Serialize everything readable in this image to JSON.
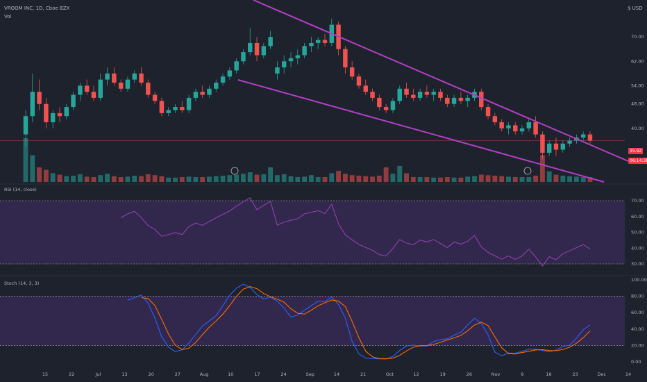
{
  "header": {
    "symbol_line": "VROOM INC, 1D, Cboe BZX",
    "vol_label": "Vol",
    "currency": "$ USD"
  },
  "price_badges": {
    "price": "35.92",
    "countdown": "06:14:38"
  },
  "colors": {
    "background": "#1e222d",
    "up": "#26a69a",
    "down": "#ef5350",
    "wedge": "#b33fc6",
    "rsi": "#8e44ad",
    "stoch_k": "#2962ff",
    "stoch_d": "#ff6d00",
    "band": "#3b2a5a"
  },
  "chart_data": [
    {
      "type": "candlestick",
      "title": "VROOM INC, 1D, Cboe BZX",
      "y_ticks": [
        70.0,
        62.0,
        54.0,
        48.0,
        40.0
      ],
      "last_price": 35.92,
      "series": [
        {
          "name": "price",
          "ohlc": [
            [
              38.0,
              46.0,
              34.0,
              44.0
            ],
            [
              44.0,
              58.0,
              42.0,
              52.0
            ],
            [
              52.0,
              56.0,
              46.0,
              48.0
            ],
            [
              48.0,
              50.0,
              40.0,
              42.0
            ],
            [
              42.0,
              46.0,
              40.0,
              45.0
            ],
            [
              45.0,
              47.0,
              42.0,
              44.0
            ],
            [
              44.0,
              48.0,
              43.0,
              47.0
            ],
            [
              47.0,
              52.0,
              46.0,
              51.0
            ],
            [
              51.0,
              55.0,
              49.0,
              54.0
            ],
            [
              54.0,
              56.0,
              51.0,
              52.0
            ],
            [
              52.0,
              54.0,
              49.0,
              50.0
            ],
            [
              50.0,
              58.0,
              49.0,
              56.0
            ],
            [
              56.0,
              60.0,
              54.0,
              58.0
            ],
            [
              58.0,
              60.0,
              54.0,
              55.0
            ],
            [
              55.0,
              56.0,
              52.0,
              53.0
            ],
            [
              53.0,
              57.0,
              52.0,
              56.0
            ],
            [
              56.0,
              59.0,
              55.0,
              58.0
            ],
            [
              58.0,
              60.0,
              54.0,
              55.0
            ],
            [
              55.0,
              56.0,
              50.0,
              51.0
            ],
            [
              51.0,
              52.0,
              48.0,
              49.0
            ],
            [
              49.0,
              50.0,
              44.0,
              45.0
            ],
            [
              45.0,
              47.0,
              44.0,
              46.0
            ],
            [
              46.0,
              48.0,
              45.0,
              47.0
            ],
            [
              47.0,
              49.0,
              45.0,
              46.0
            ],
            [
              46.0,
              51.0,
              45.0,
              50.0
            ],
            [
              50.0,
              53.0,
              49.0,
              52.0
            ],
            [
              52.0,
              54.0,
              50.0,
              51.0
            ],
            [
              51.0,
              54.0,
              50.0,
              53.0
            ],
            [
              53.0,
              56.0,
              52.0,
              55.0
            ],
            [
              55.0,
              58.0,
              54.0,
              57.0
            ],
            [
              57.0,
              60.0,
              56.0,
              59.0
            ],
            [
              59.0,
              63.0,
              58.0,
              62.0
            ],
            [
              62.0,
              66.0,
              61.0,
              65.0
            ],
            [
              65.0,
              73.0,
              64.0,
              68.0
            ],
            [
              68.0,
              70.0,
              62.0,
              64.0
            ],
            [
              64.0,
              68.0,
              63.0,
              67.0
            ],
            [
              67.0,
              72.0,
              66.0,
              70.0
            ],
            [
              58.0,
              62.0,
              56.0,
              60.0
            ],
            [
              60.0,
              64.0,
              58.0,
              62.0
            ],
            [
              62.0,
              65.0,
              60.0,
              63.0
            ],
            [
              63.0,
              66.0,
              61.0,
              64.0
            ],
            [
              64.0,
              68.0,
              63.0,
              67.0
            ],
            [
              67.0,
              70.0,
              65.0,
              68.0
            ],
            [
              68.0,
              70.0,
              66.0,
              69.0
            ],
            [
              69.0,
              71.0,
              67.0,
              68.0
            ],
            [
              68.0,
              76.0,
              67.0,
              74.0
            ],
            [
              74.0,
              75.0,
              64.0,
              66.0
            ],
            [
              66.0,
              67.0,
              58.0,
              60.0
            ],
            [
              60.0,
              62.0,
              56.0,
              57.0
            ],
            [
              57.0,
              58.0,
              53.0,
              54.0
            ],
            [
              54.0,
              56.0,
              51.0,
              52.0
            ],
            [
              52.0,
              53.0,
              49.0,
              50.0
            ],
            [
              50.0,
              51.0,
              46.0,
              47.0
            ],
            [
              47.0,
              48.0,
              45.0,
              46.0
            ],
            [
              46.0,
              50.0,
              45.0,
              49.0
            ],
            [
              49.0,
              54.0,
              48.0,
              53.0
            ],
            [
              53.0,
              55.0,
              50.0,
              51.0
            ],
            [
              51.0,
              53.0,
              49.0,
              50.0
            ],
            [
              50.0,
              53.0,
              49.0,
              52.0
            ],
            [
              52.0,
              54.0,
              50.0,
              51.0
            ],
            [
              51.0,
              53.0,
              49.0,
              52.0
            ],
            [
              52.0,
              53.0,
              49.0,
              50.0
            ],
            [
              50.0,
              51.0,
              47.0,
              48.0
            ],
            [
              48.0,
              51.0,
              47.0,
              50.0
            ],
            [
              50.0,
              52.0,
              48.0,
              49.0
            ],
            [
              49.0,
              51.0,
              47.0,
              50.0
            ],
            [
              50.0,
              53.0,
              49.0,
              52.0
            ],
            [
              52.0,
              53.0,
              46.0,
              47.0
            ],
            [
              47.0,
              48.0,
              43.0,
              44.0
            ],
            [
              44.0,
              45.0,
              41.0,
              42.0
            ],
            [
              42.0,
              43.0,
              39.0,
              40.0
            ],
            [
              40.0,
              42.0,
              38.0,
              41.0
            ],
            [
              41.0,
              42.0,
              38.0,
              39.0
            ],
            [
              39.0,
              41.0,
              38.0,
              40.0
            ],
            [
              40.0,
              43.0,
              39.0,
              42.0
            ],
            [
              42.0,
              44.0,
              37.0,
              38.0
            ],
            [
              38.0,
              39.0,
              30.0,
              32.0
            ],
            [
              32.0,
              36.0,
              31.0,
              35.0
            ],
            [
              35.0,
              37.0,
              31.0,
              33.0
            ],
            [
              33.0,
              36.0,
              32.0,
              35.0
            ],
            [
              35.0,
              37.0,
              34.0,
              36.0
            ],
            [
              36.0,
              38.0,
              35.0,
              37.0
            ],
            [
              37.0,
              39.0,
              36.0,
              38.0
            ],
            [
              38.0,
              39.0,
              35.0,
              36.0
            ]
          ]
        }
      ]
    },
    {
      "type": "bar",
      "title": "Vol",
      "series": [
        {
          "name": "volume",
          "values": [
            9.0,
            5.5,
            3.0,
            2.5,
            1.8,
            1.5,
            1.2,
            1.3,
            1.6,
            1.1,
            1.0,
            1.4,
            1.7,
            1.2,
            1.0,
            1.1,
            1.3,
            1.2,
            1.6,
            1.4,
            1.2,
            0.9,
            0.9,
            1.0,
            1.1,
            1.0,
            1.0,
            1.1,
            1.2,
            1.3,
            1.4,
            1.5,
            1.7,
            2.0,
            1.5,
            1.6,
            3.0,
            1.4,
            1.6,
            1.2,
            1.0,
            1.1,
            1.4,
            1.0,
            1.0,
            1.8,
            2.3,
            1.7,
            1.4,
            1.3,
            1.2,
            1.1,
            1.3,
            3.0,
            1.7,
            3.3,
            1.8,
            1.0,
            1.0,
            1.0,
            0.9,
            0.9,
            1.0,
            0.9,
            0.9,
            1.1,
            1.2,
            1.5,
            1.4,
            1.3,
            1.2,
            1.1,
            1.0,
            1.0,
            1.0,
            1.3,
            5.5,
            2.2,
            1.5,
            1.3,
            1.2,
            1.1,
            1.0,
            1.0
          ]
        }
      ]
    },
    {
      "type": "line",
      "title": "RSI (14, close)",
      "y_ticks": [
        70.0,
        60.0,
        50.0,
        40.0,
        30.0
      ],
      "band": [
        30,
        70
      ],
      "series": [
        {
          "name": "RSI",
          "values": [
            null,
            null,
            null,
            null,
            null,
            null,
            null,
            null,
            null,
            null,
            null,
            null,
            null,
            null,
            null,
            null,
            null,
            null,
            null,
            null,
            null,
            null,
            null,
            null,
            null,
            null,
            null,
            null,
            null,
            null,
            null,
            null,
            null,
            null,
            null,
            null,
            null,
            null,
            null,
            null,
            null,
            null,
            null,
            null,
            null,
            null,
            null,
            null,
            null,
            null,
            null,
            null,
            null,
            null,
            null,
            null,
            null,
            null,
            null,
            null,
            null,
            null,
            null,
            null,
            null,
            null,
            null,
            null,
            null,
            null,
            null,
            null,
            null,
            null,
            null,
            null,
            null,
            null,
            null,
            null,
            null,
            null,
            null,
            null
          ]
        }
      ]
    },
    {
      "type": "line",
      "title": "Stoch (14, 3, 3)",
      "y_ticks": [
        100.0,
        80.0,
        60.0,
        40.0,
        20.0,
        0.0
      ],
      "band": [
        20,
        80
      ],
      "series": [
        {
          "name": "%K",
          "values": []
        },
        {
          "name": "%D",
          "values": []
        }
      ]
    }
  ],
  "x_axis": {
    "ticks": [
      "15",
      "22",
      "Jul",
      "13",
      "20",
      "27",
      "Aug",
      "10",
      "17",
      "24",
      "Sep",
      "14",
      "21",
      "Oct",
      "12",
      "19",
      "26",
      "Nov",
      "9",
      "16",
      "23",
      "Dec",
      "14"
    ]
  }
}
